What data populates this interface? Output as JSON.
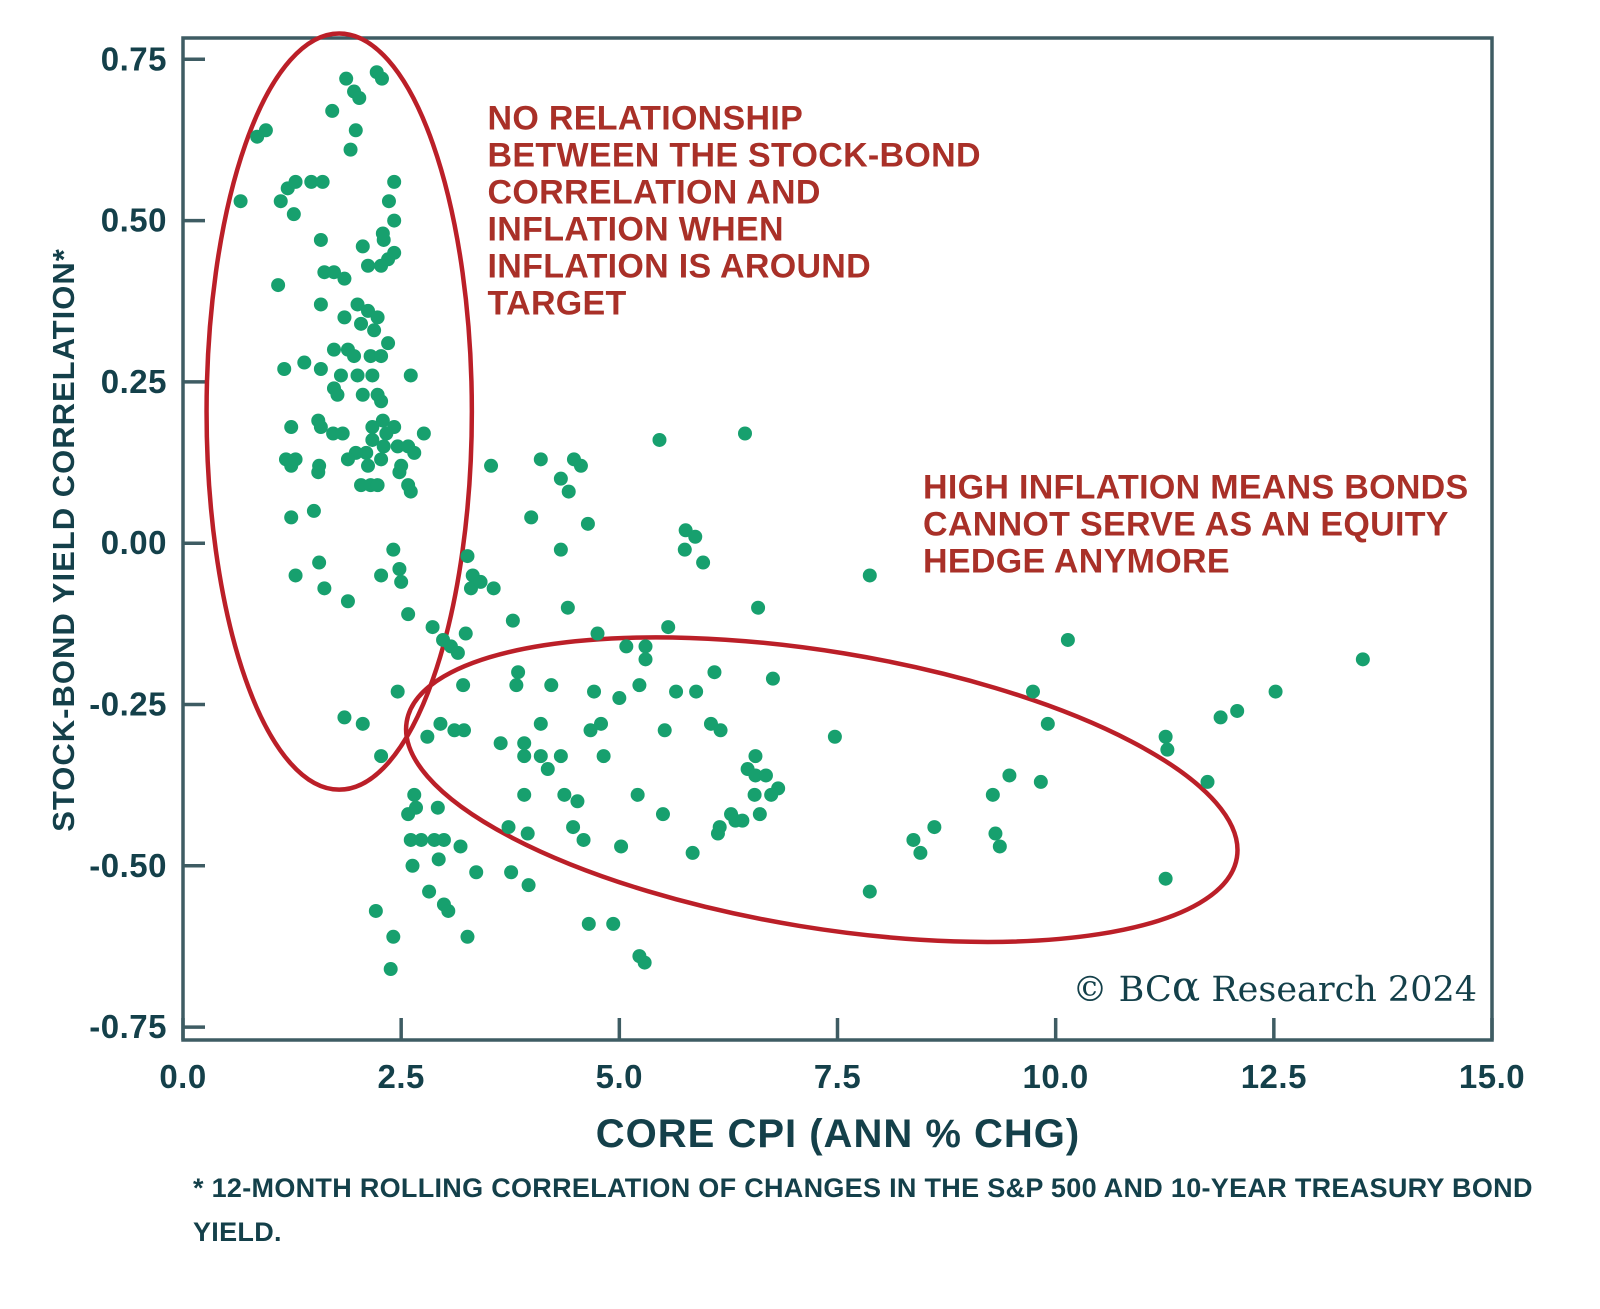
{
  "chart_data": {
    "type": "scatter",
    "xlabel": "CORE CPI (ANN % CHG)",
    "ylabel": "STOCK-BOND YIELD CORRELATION*",
    "footnote_lines": [
      "* 12-MONTH ROLLING CORRELATION OF CHANGES IN THE S&P 500 AND 10-YEAR TREASURY BOND",
      "YIELD."
    ],
    "copyright_prefix": "© BC",
    "copyright_alpha": "α",
    "copyright_suffix": " Research 2024",
    "xlim": [
      0,
      15
    ],
    "ylim": [
      -0.77,
      0.783
    ],
    "xticks": [
      0.0,
      2.5,
      5.0,
      7.5,
      10.0,
      12.5,
      15.0
    ],
    "xtick_labels": [
      "0.0",
      "2.5",
      "5.0",
      "7.5",
      "10.0",
      "12.5",
      "15.0"
    ],
    "yticks": [
      0.75,
      0.5,
      0.25,
      0.0,
      -0.25,
      -0.5,
      -0.75
    ],
    "ytick_labels": [
      "0.75",
      "0.50",
      "0.25",
      "0.00",
      "-0.25",
      "-0.50",
      "-0.75"
    ],
    "grid": false,
    "legend": "none",
    "colors": {
      "point": "#17a06e",
      "axis": "#3e5c63",
      "label": "#14404a",
      "annotation_text": "#a93028",
      "ellipse": "#bb1f28"
    },
    "point_radius": 7,
    "annotations": [
      {
        "lines": [
          "NO RELATIONSHIP",
          "BETWEEN THE STOCK-BOND",
          "CORRELATION AND",
          "INFLATION WHEN",
          "INFLATION IS AROUND",
          "TARGET"
        ],
        "x": 3.49,
        "y": 0.641,
        "line_height": 37,
        "anchor": "start"
      },
      {
        "lines": [
          "HIGH INFLATION MEANS BONDS",
          "CANNOT SERVE AS AN EQUITY",
          "HEDGE ANYMORE"
        ],
        "x": 8.48,
        "y": 0.069,
        "line_height": 37,
        "anchor": "start"
      }
    ],
    "ellipses": [
      {
        "cx": 1.79,
        "cy": 0.204,
        "rx": 1.52,
        "ry": 0.586,
        "rotate": 0
      },
      {
        "cx": 7.32,
        "cy": -0.382,
        "rx": 4.82,
        "ry": 0.214,
        "rotate": 9.3
      }
    ],
    "points": [
      [
        2.22,
        0.73
      ],
      [
        2.28,
        0.72
      ],
      [
        1.87,
        0.72
      ],
      [
        1.96,
        0.7
      ],
      [
        1.71,
        0.67
      ],
      [
        2.02,
        0.69
      ],
      [
        0.95,
        0.64
      ],
      [
        0.85,
        0.63
      ],
      [
        1.98,
        0.64
      ],
      [
        1.92,
        0.61
      ],
      [
        0.66,
        0.53
      ],
      [
        1.2,
        0.55
      ],
      [
        1.29,
        0.56
      ],
      [
        1.47,
        0.56
      ],
      [
        1.6,
        0.56
      ],
      [
        1.12,
        0.53
      ],
      [
        1.27,
        0.51
      ],
      [
        2.42,
        0.56
      ],
      [
        2.36,
        0.53
      ],
      [
        2.42,
        0.5
      ],
      [
        1.58,
        0.47
      ],
      [
        2.3,
        0.47
      ],
      [
        2.42,
        0.45
      ],
      [
        2.29,
        0.48
      ],
      [
        2.35,
        0.44
      ],
      [
        2.06,
        0.46
      ],
      [
        2.12,
        0.43
      ],
      [
        2.27,
        0.43
      ],
      [
        1.62,
        0.42
      ],
      [
        1.73,
        0.42
      ],
      [
        1.85,
        0.41
      ],
      [
        1.09,
        0.4
      ],
      [
        1.58,
        0.37
      ],
      [
        2.0,
        0.37
      ],
      [
        2.12,
        0.36
      ],
      [
        2.23,
        0.35
      ],
      [
        1.85,
        0.35
      ],
      [
        2.04,
        0.34
      ],
      [
        2.19,
        0.33
      ],
      [
        2.35,
        0.31
      ],
      [
        1.73,
        0.3
      ],
      [
        1.89,
        0.3
      ],
      [
        1.96,
        0.29
      ],
      [
        2.15,
        0.29
      ],
      [
        2.27,
        0.29
      ],
      [
        1.39,
        0.28
      ],
      [
        1.58,
        0.27
      ],
      [
        1.16,
        0.27
      ],
      [
        1.81,
        0.26
      ],
      [
        2.0,
        0.26
      ],
      [
        2.17,
        0.26
      ],
      [
        2.61,
        0.26
      ],
      [
        1.73,
        0.24
      ],
      [
        1.77,
        0.23
      ],
      [
        2.06,
        0.23
      ],
      [
        2.23,
        0.23
      ],
      [
        2.27,
        0.22
      ],
      [
        1.24,
        0.18
      ],
      [
        1.55,
        0.19
      ],
      [
        1.58,
        0.18
      ],
      [
        1.72,
        0.17
      ],
      [
        1.83,
        0.17
      ],
      [
        2.17,
        0.18
      ],
      [
        2.29,
        0.19
      ],
      [
        2.42,
        0.18
      ],
      [
        2.76,
        0.17
      ],
      [
        2.33,
        0.17
      ],
      [
        2.46,
        0.15
      ],
      [
        2.58,
        0.15
      ],
      [
        2.65,
        0.14
      ],
      [
        2.17,
        0.16
      ],
      [
        2.3,
        0.15
      ],
      [
        2.1,
        0.14
      ],
      [
        1.98,
        0.14
      ],
      [
        1.89,
        0.13
      ],
      [
        2.12,
        0.12
      ],
      [
        2.27,
        0.13
      ],
      [
        1.18,
        0.13
      ],
      [
        1.24,
        0.12
      ],
      [
        1.29,
        0.13
      ],
      [
        1.56,
        0.12
      ],
      [
        1.55,
        0.11
      ],
      [
        2.5,
        0.12
      ],
      [
        2.48,
        0.11
      ],
      [
        2.04,
        0.09
      ],
      [
        2.15,
        0.09
      ],
      [
        2.23,
        0.09
      ],
      [
        2.58,
        0.09
      ],
      [
        2.61,
        0.08
      ],
      [
        3.53,
        0.12
      ],
      [
        4.1,
        0.13
      ],
      [
        4.48,
        0.13
      ],
      [
        4.56,
        0.12
      ],
      [
        4.33,
        0.1
      ],
      [
        4.42,
        0.08
      ],
      [
        3.99,
        0.04
      ],
      [
        4.64,
        0.03
      ],
      [
        1.5,
        0.05
      ],
      [
        1.24,
        0.04
      ],
      [
        4.33,
        -0.01
      ],
      [
        2.41,
        -0.01
      ],
      [
        2.27,
        -0.05
      ],
      [
        2.48,
        -0.04
      ],
      [
        2.5,
        -0.06
      ],
      [
        1.29,
        -0.05
      ],
      [
        1.56,
        -0.03
      ],
      [
        1.62,
        -0.07
      ],
      [
        1.89,
        -0.09
      ],
      [
        3.26,
        -0.02
      ],
      [
        3.32,
        -0.05
      ],
      [
        3.3,
        -0.07
      ],
      [
        3.41,
        -0.06
      ],
      [
        3.56,
        -0.07
      ],
      [
        4.41,
        -0.1
      ],
      [
        2.58,
        -0.11
      ],
      [
        2.86,
        -0.13
      ],
      [
        2.98,
        -0.15
      ],
      [
        3.07,
        -0.16
      ],
      [
        3.15,
        -0.17
      ],
      [
        3.24,
        -0.14
      ],
      [
        3.78,
        -0.12
      ],
      [
        3.84,
        -0.2
      ],
      [
        3.82,
        -0.22
      ],
      [
        4.22,
        -0.22
      ],
      [
        3.21,
        -0.22
      ],
      [
        2.46,
        -0.23
      ],
      [
        4.75,
        -0.14
      ],
      [
        4.71,
        -0.23
      ],
      [
        5.0,
        -0.24
      ],
      [
        1.85,
        -0.27
      ],
      [
        2.06,
        -0.28
      ],
      [
        2.8,
        -0.3
      ],
      [
        2.95,
        -0.28
      ],
      [
        3.11,
        -0.29
      ],
      [
        3.22,
        -0.29
      ],
      [
        2.27,
        -0.33
      ],
      [
        3.64,
        -0.31
      ],
      [
        3.91,
        -0.31
      ],
      [
        4.1,
        -0.28
      ],
      [
        3.91,
        -0.33
      ],
      [
        4.1,
        -0.33
      ],
      [
        4.18,
        -0.35
      ],
      [
        4.33,
        -0.33
      ],
      [
        4.67,
        -0.29
      ],
      [
        4.79,
        -0.28
      ],
      [
        4.82,
        -0.33
      ],
      [
        2.65,
        -0.39
      ],
      [
        2.67,
        -0.41
      ],
      [
        2.58,
        -0.42
      ],
      [
        2.92,
        -0.41
      ],
      [
        3.91,
        -0.39
      ],
      [
        4.37,
        -0.39
      ],
      [
        4.52,
        -0.4
      ],
      [
        2.61,
        -0.46
      ],
      [
        2.73,
        -0.46
      ],
      [
        2.88,
        -0.46
      ],
      [
        2.99,
        -0.46
      ],
      [
        3.18,
        -0.47
      ],
      [
        3.73,
        -0.44
      ],
      [
        3.95,
        -0.45
      ],
      [
        4.47,
        -0.44
      ],
      [
        4.59,
        -0.46
      ],
      [
        5.02,
        -0.47
      ],
      [
        2.63,
        -0.5
      ],
      [
        2.93,
        -0.49
      ],
      [
        3.36,
        -0.51
      ],
      [
        3.76,
        -0.51
      ],
      [
        3.96,
        -0.53
      ],
      [
        2.82,
        -0.54
      ],
      [
        2.99,
        -0.56
      ],
      [
        3.04,
        -0.57
      ],
      [
        2.21,
        -0.57
      ],
      [
        2.41,
        -0.61
      ],
      [
        3.26,
        -0.61
      ],
      [
        4.65,
        -0.59
      ],
      [
        4.93,
        -0.59
      ],
      [
        2.38,
        -0.66
      ],
      [
        5.46,
        0.16
      ],
      [
        6.44,
        0.17
      ],
      [
        5.76,
        0.02
      ],
      [
        5.87,
        0.01
      ],
      [
        5.75,
        -0.01
      ],
      [
        5.96,
        -0.03
      ],
      [
        7.87,
        -0.05
      ],
      [
        6.59,
        -0.1
      ],
      [
        5.56,
        -0.13
      ],
      [
        5.08,
        -0.16
      ],
      [
        5.3,
        -0.16
      ],
      [
        5.3,
        -0.18
      ],
      [
        5.23,
        -0.22
      ],
      [
        5.65,
        -0.23
      ],
      [
        5.88,
        -0.23
      ],
      [
        6.09,
        -0.2
      ],
      [
        6.76,
        -0.21
      ],
      [
        5.52,
        -0.29
      ],
      [
        6.05,
        -0.28
      ],
      [
        6.16,
        -0.29
      ],
      [
        7.47,
        -0.3
      ],
      [
        6.56,
        -0.33
      ],
      [
        6.47,
        -0.35
      ],
      [
        6.56,
        -0.36
      ],
      [
        6.68,
        -0.36
      ],
      [
        6.82,
        -0.38
      ],
      [
        6.74,
        -0.39
      ],
      [
        5.21,
        -0.39
      ],
      [
        5.5,
        -0.42
      ],
      [
        6.55,
        -0.39
      ],
      [
        6.61,
        -0.42
      ],
      [
        6.28,
        -0.42
      ],
      [
        6.33,
        -0.43
      ],
      [
        6.41,
        -0.43
      ],
      [
        6.15,
        -0.44
      ],
      [
        6.13,
        -0.45
      ],
      [
        5.84,
        -0.48
      ],
      [
        8.37,
        -0.46
      ],
      [
        8.45,
        -0.48
      ],
      [
        8.61,
        -0.44
      ],
      [
        9.31,
        -0.45
      ],
      [
        9.36,
        -0.47
      ],
      [
        9.28,
        -0.39
      ],
      [
        9.47,
        -0.36
      ],
      [
        9.83,
        -0.37
      ],
      [
        7.87,
        -0.54
      ],
      [
        5.23,
        -0.64
      ],
      [
        5.29,
        -0.65
      ],
      [
        9.74,
        -0.23
      ],
      [
        9.91,
        -0.28
      ],
      [
        10.14,
        -0.15
      ],
      [
        13.52,
        -0.18
      ],
      [
        12.52,
        -0.23
      ],
      [
        11.89,
        -0.27
      ],
      [
        12.08,
        -0.26
      ],
      [
        11.26,
        -0.3
      ],
      [
        11.28,
        -0.32
      ],
      [
        11.74,
        -0.37
      ],
      [
        11.26,
        -0.52
      ]
    ]
  }
}
